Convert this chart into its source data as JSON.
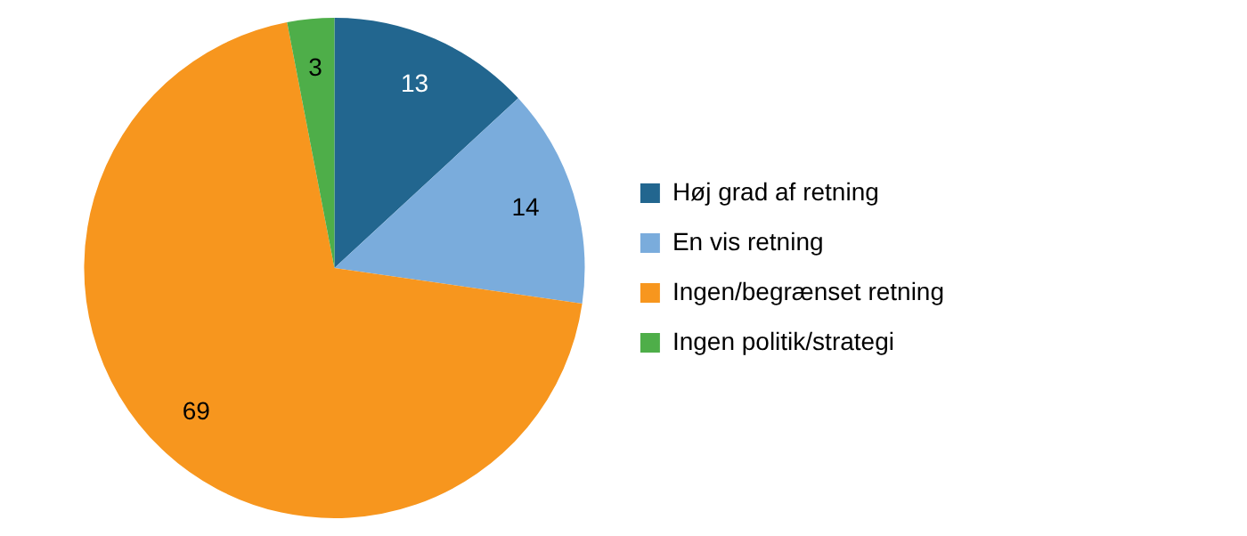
{
  "chart_data": {
    "type": "pie",
    "categories": [
      "Høj grad af retning",
      "En vis retning",
      "Ingen/begrænset retning",
      "Ingen politik/strategi"
    ],
    "values": [
      13,
      14,
      69,
      3
    ],
    "colors": [
      "#22668f",
      "#7aacdc",
      "#f7961e",
      "#4eae49"
    ],
    "data_labels": true,
    "legend": "right"
  }
}
